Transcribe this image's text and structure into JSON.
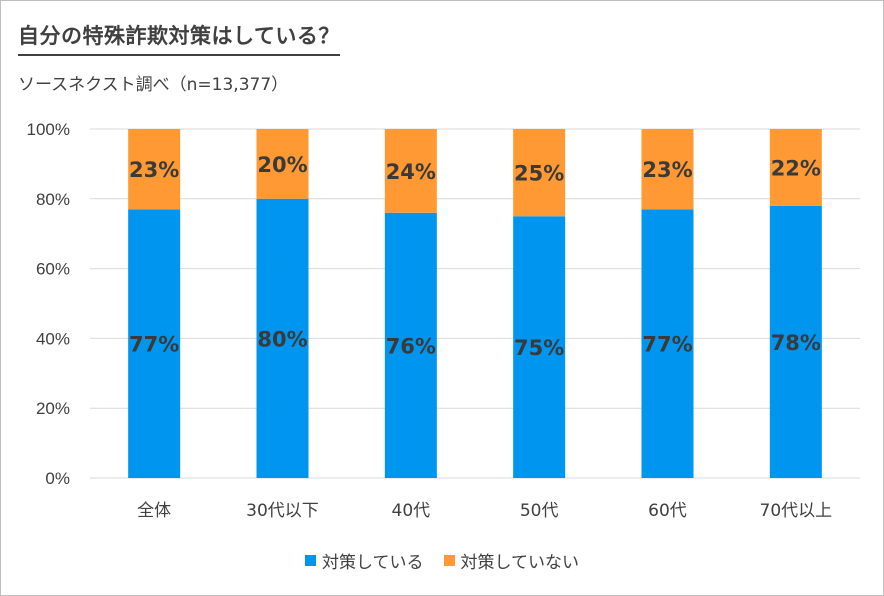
{
  "title": "自分の特殊詐欺対策はしている？",
  "subtitle": "ソースネクスト調べ（n=13,377）",
  "colors": {
    "series1": "#0096f0",
    "series2": "#ff9933",
    "grid": "#d9d9d9",
    "text": "#404040"
  },
  "chart_data": {
    "type": "bar",
    "stacked": true,
    "categories": [
      "全体",
      "30代以下",
      "40代",
      "50代",
      "60代",
      "70代以上"
    ],
    "series": [
      {
        "name": "対策している",
        "values": [
          77,
          80,
          76,
          75,
          77,
          78
        ],
        "labels": [
          "77%",
          "80%",
          "76%",
          "75%",
          "77%",
          "78%"
        ]
      },
      {
        "name": "対策していない",
        "values": [
          23,
          20,
          24,
          25,
          23,
          22
        ],
        "labels": [
          "23%",
          "20%",
          "24%",
          "25%",
          "23%",
          "22%"
        ]
      }
    ],
    "y_ticks": [
      "0%",
      "20%",
      "40%",
      "60%",
      "80%",
      "100%"
    ],
    "ylim": [
      0,
      100
    ],
    "grid": true,
    "legend": "bottom"
  }
}
